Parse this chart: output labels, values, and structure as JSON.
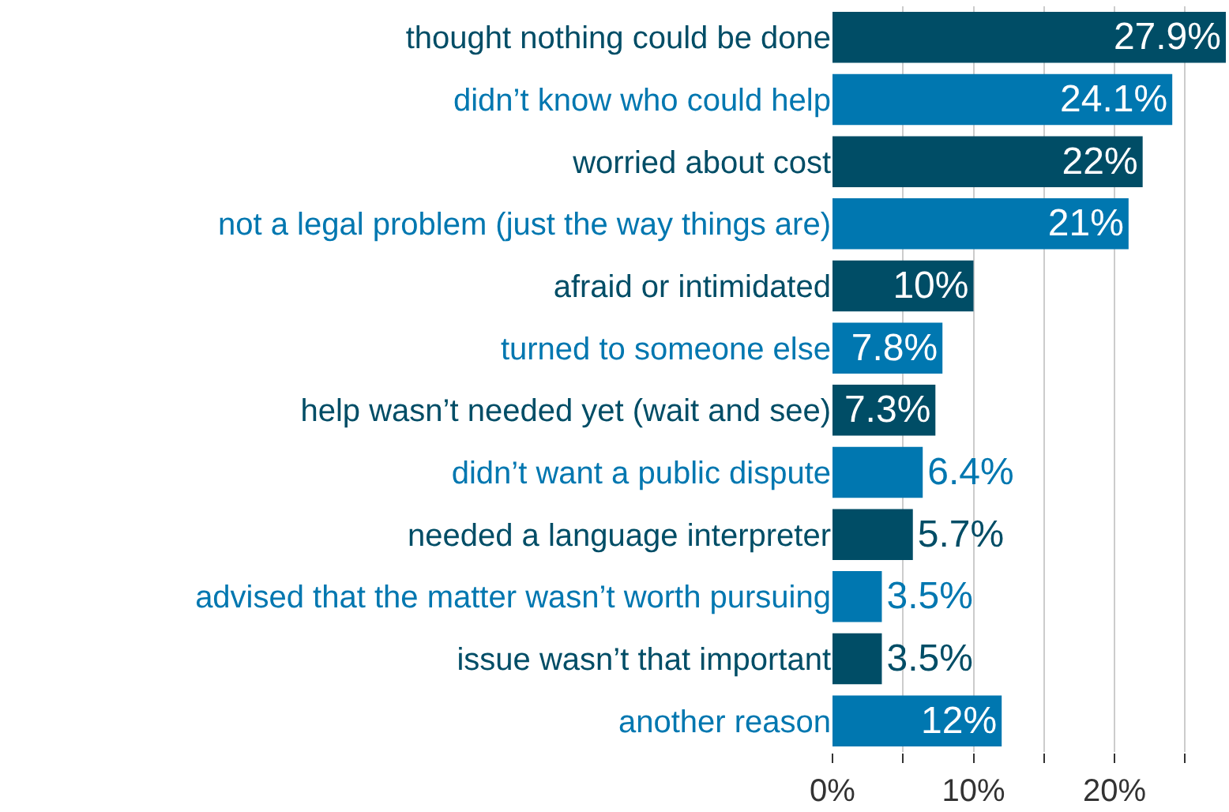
{
  "chart_data": {
    "type": "bar",
    "orientation": "horizontal",
    "categories": [
      "thought nothing could be done",
      "didn’t know who could help",
      "worried about cost",
      "not a legal problem (just the way things are)",
      "afraid or intimidated",
      "turned to someone else",
      "help wasn’t needed yet (wait and see)",
      "didn’t want a public dispute",
      "needed a language interpreter",
      "advised that the matter wasn’t worth pursuing",
      "issue wasn’t that important",
      "another reason"
    ],
    "values": [
      27.9,
      24.1,
      22,
      21,
      10,
      7.8,
      7.3,
      6.4,
      5.7,
      3.5,
      3.5,
      12
    ],
    "value_labels": [
      "27.9%",
      "24.1%",
      "22%",
      "21%",
      "10%",
      "7.8%",
      "7.3%",
      "6.4%",
      "5.7%",
      "3.5%",
      "3.5%",
      "12%"
    ],
    "colors": [
      "#004d66",
      "#0077b0",
      "#004d66",
      "#0077b0",
      "#004d66",
      "#0077b0",
      "#004d66",
      "#0077b0",
      "#004d66",
      "#0077b0",
      "#004d66",
      "#0077b0"
    ],
    "xlim": [
      0,
      27.9
    ],
    "xticks": [
      {
        "value": 0,
        "label": "0%"
      },
      {
        "value": 5,
        "label": null
      },
      {
        "value": 10,
        "label": "10%"
      },
      {
        "value": 15,
        "label": null
      },
      {
        "value": 20,
        "label": "20%"
      },
      {
        "value": 25,
        "label": null
      }
    ],
    "grid": "x",
    "legend": false
  }
}
